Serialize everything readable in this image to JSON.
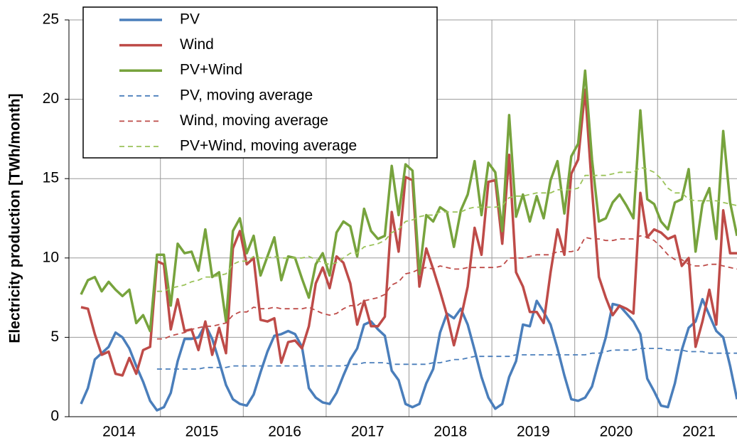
{
  "chart_data": {
    "type": "line",
    "y_label": "Electricity production [TWh/month]",
    "categories": [
      null,
      null,
      null,
      null,
      null,
      null,
      "2014",
      null,
      null,
      null,
      null,
      null,
      null,
      null,
      null,
      null,
      null,
      null,
      "2015",
      null,
      null,
      null,
      null,
      null,
      null,
      null,
      null,
      null,
      null,
      null,
      "2016",
      null,
      null,
      null,
      null,
      null,
      null,
      null,
      null,
      null,
      null,
      null,
      "2017",
      null,
      null,
      null,
      null,
      null,
      null,
      null,
      null,
      null,
      null,
      null,
      "2018",
      null,
      null,
      null,
      null,
      null,
      null,
      null,
      null,
      null,
      null,
      null,
      "2019",
      null,
      null,
      null,
      null,
      null,
      null,
      null,
      null,
      null,
      null,
      null,
      "2020",
      null,
      null,
      null,
      null,
      null,
      null,
      null,
      null,
      null,
      null,
      null,
      "2021",
      null,
      null,
      null,
      null,
      null
    ],
    "ylim": [
      0,
      25
    ],
    "yticks": [
      0,
      5,
      10,
      15,
      20,
      25
    ],
    "grid": true,
    "legend": "upper left",
    "series": [
      {
        "name": "PV",
        "color": "#4a7ebb",
        "dashed": false,
        "values": [
          0.8,
          1.8,
          3.6,
          4.0,
          4.4,
          5.3,
          5.0,
          4.3,
          3.2,
          2.2,
          1.0,
          0.4,
          0.6,
          1.5,
          3.5,
          4.9,
          4.9,
          5.0,
          5.8,
          4.9,
          3.5,
          2.0,
          1.1,
          0.8,
          0.7,
          1.4,
          2.8,
          4.1,
          5.1,
          5.2,
          5.4,
          5.2,
          4.4,
          1.8,
          1.2,
          0.9,
          0.8,
          1.5,
          2.6,
          3.6,
          4.3,
          5.8,
          6.0,
          5.5,
          5.1,
          2.9,
          2.3,
          0.8,
          0.6,
          0.8,
          2.1,
          3.0,
          5.3,
          6.5,
          6.2,
          6.8,
          5.8,
          4.2,
          2.5,
          1.2,
          0.5,
          0.8,
          2.5,
          3.5,
          5.8,
          5.7,
          7.3,
          6.6,
          5.8,
          4.3,
          2.6,
          1.1,
          1.0,
          1.2,
          1.9,
          3.5,
          5.0,
          7.1,
          7.0,
          6.5,
          6.0,
          5.2,
          2.4,
          1.6,
          0.7,
          0.6,
          2.1,
          4.2,
          5.6,
          6.0,
          7.4,
          6.4,
          5.4,
          5.0,
          3.2,
          1.1
        ]
      },
      {
        "name": "Wind",
        "color": "#be4b48",
        "dashed": false,
        "values": [
          6.9,
          6.8,
          5.2,
          3.9,
          4.1,
          2.7,
          2.6,
          3.7,
          2.7,
          4.2,
          4.4,
          9.8,
          9.6,
          5.5,
          7.4,
          5.4,
          5.5,
          4.2,
          6.0,
          3.9,
          5.6,
          4.0,
          10.6,
          11.7,
          9.6,
          10.0,
          6.1,
          6.0,
          6.2,
          3.4,
          4.7,
          4.8,
          4.3,
          5.7,
          8.4,
          9.4,
          8.1,
          10.1,
          9.7,
          8.4,
          5.8,
          7.3,
          5.7,
          5.7,
          6.3,
          12.9,
          10.4,
          15.1,
          14.9,
          8.2,
          10.6,
          9.3,
          7.9,
          6.4,
          4.5,
          6.2,
          8.2,
          11.9,
          10.2,
          14.8,
          14.9,
          10.9,
          16.5,
          9.1,
          8.2,
          6.6,
          6.6,
          5.9,
          9.1,
          11.8,
          10.2,
          15.3,
          16.2,
          20.6,
          14.3,
          8.8,
          7.5,
          6.4,
          7.0,
          6.8,
          6.5,
          14.1,
          11.3,
          11.8,
          11.6,
          11.2,
          11.4,
          9.5,
          10.0,
          4.4,
          6.0,
          8.0,
          5.8,
          13.0,
          10.3,
          10.3
        ]
      },
      {
        "name": "PV+Wind",
        "color": "#77a33d",
        "dashed": false,
        "values": [
          7.7,
          8.6,
          8.8,
          7.9,
          8.5,
          8.0,
          7.6,
          8.0,
          5.9,
          6.4,
          5.4,
          10.2,
          10.2,
          7.0,
          10.9,
          10.3,
          10.4,
          9.2,
          11.8,
          8.8,
          9.1,
          6.0,
          11.7,
          12.5,
          10.3,
          11.4,
          8.9,
          10.1,
          11.3,
          8.6,
          10.1,
          10.0,
          8.7,
          7.5,
          9.6,
          10.3,
          8.9,
          11.6,
          12.3,
          12.0,
          10.1,
          13.1,
          11.7,
          11.2,
          11.4,
          15.8,
          12.7,
          15.9,
          15.5,
          9.0,
          12.7,
          12.3,
          13.2,
          12.9,
          10.7,
          13.0,
          14.0,
          16.1,
          12.7,
          16.0,
          15.4,
          11.7,
          19.0,
          12.6,
          14.0,
          12.3,
          13.9,
          12.5,
          14.9,
          16.1,
          12.8,
          16.4,
          17.2,
          21.8,
          16.2,
          12.3,
          12.5,
          13.5,
          14.0,
          13.3,
          12.5,
          19.3,
          13.7,
          13.4,
          12.3,
          11.8,
          13.5,
          13.7,
          15.6,
          10.4,
          13.4,
          14.4,
          11.2,
          18.0,
          13.5,
          11.4
        ]
      },
      {
        "name": "PV, moving average",
        "color": "#4a7ebb",
        "dashed": true,
        "values": [
          null,
          null,
          null,
          null,
          null,
          null,
          null,
          null,
          null,
          null,
          null,
          3.0,
          3.0,
          3.0,
          3.0,
          3.0,
          3.0,
          3.0,
          3.1,
          3.1,
          3.1,
          3.1,
          3.2,
          3.2,
          3.2,
          3.2,
          3.2,
          3.2,
          3.2,
          3.2,
          3.2,
          3.2,
          3.2,
          3.2,
          3.2,
          3.2,
          3.2,
          3.2,
          3.2,
          3.3,
          3.3,
          3.4,
          3.4,
          3.4,
          3.4,
          3.3,
          3.3,
          3.3,
          3.3,
          3.3,
          3.3,
          3.4,
          3.4,
          3.5,
          3.6,
          3.6,
          3.7,
          3.8,
          3.8,
          3.8,
          3.8,
          3.8,
          3.8,
          3.9,
          3.9,
          3.9,
          3.9,
          3.9,
          3.9,
          3.9,
          3.9,
          3.9,
          3.9,
          3.9,
          4.0,
          4.0,
          4.1,
          4.2,
          4.2,
          4.2,
          4.2,
          4.3,
          4.3,
          4.3,
          4.3,
          4.2,
          4.2,
          4.2,
          4.1,
          4.1,
          4.1,
          4.0,
          4.0,
          4.0,
          4.0,
          4.0
        ]
      },
      {
        "name": "Wind, moving average",
        "color": "#be4b48",
        "dashed": true,
        "values": [
          null,
          null,
          null,
          null,
          null,
          null,
          null,
          null,
          null,
          null,
          null,
          4.9,
          4.9,
          5.1,
          5.2,
          5.3,
          5.5,
          5.6,
          5.7,
          5.7,
          5.8,
          5.9,
          6.4,
          6.6,
          6.6,
          6.9,
          6.8,
          6.8,
          6.9,
          6.8,
          6.8,
          6.8,
          6.8,
          6.9,
          6.7,
          6.5,
          6.4,
          6.5,
          6.8,
          7.0,
          7.0,
          7.3,
          7.4,
          7.5,
          7.7,
          8.3,
          8.5,
          9.0,
          9.1,
          9.3,
          9.4,
          9.3,
          9.5,
          9.4,
          9.3,
          9.3,
          9.4,
          9.4,
          9.4,
          9.4,
          9.4,
          9.5,
          10.0,
          10.0,
          10.0,
          10.1,
          10.2,
          10.2,
          10.2,
          10.4,
          10.4,
          10.4,
          10.5,
          11.3,
          11.2,
          11.2,
          11.1,
          11.1,
          11.2,
          11.2,
          11.2,
          11.4,
          11.3,
          11.1,
          10.7,
          10.2,
          9.9,
          9.9,
          9.6,
          9.5,
          9.5,
          9.6,
          9.6,
          9.5,
          9.4,
          9.3
        ]
      },
      {
        "name": "PV+Wind, moving average",
        "color": "#9bc35a",
        "dashed": true,
        "values": [
          null,
          null,
          null,
          null,
          null,
          null,
          null,
          null,
          null,
          null,
          null,
          7.9,
          7.9,
          8.1,
          8.2,
          8.3,
          8.5,
          8.6,
          8.8,
          8.8,
          8.9,
          9.0,
          9.6,
          9.8,
          9.8,
          10.1,
          10.0,
          10.0,
          10.1,
          10.0,
          10.0,
          10.0,
          10.0,
          10.1,
          9.9,
          9.7,
          9.6,
          9.7,
          10.0,
          10.3,
          10.3,
          10.7,
          10.8,
          10.9,
          11.1,
          11.6,
          11.8,
          12.3,
          12.4,
          12.6,
          12.7,
          12.7,
          12.9,
          12.9,
          12.9,
          12.9,
          13.1,
          13.2,
          13.2,
          13.2,
          13.2,
          13.3,
          13.8,
          13.9,
          13.9,
          14.0,
          14.1,
          14.1,
          14.1,
          14.3,
          14.3,
          14.3,
          14.4,
          15.2,
          15.2,
          15.2,
          15.2,
          15.3,
          15.4,
          15.4,
          15.4,
          15.7,
          15.6,
          15.4,
          15.0,
          14.4,
          14.1,
          14.1,
          13.7,
          13.6,
          13.6,
          13.6,
          13.6,
          13.5,
          13.4,
          13.3
        ]
      }
    ]
  }
}
